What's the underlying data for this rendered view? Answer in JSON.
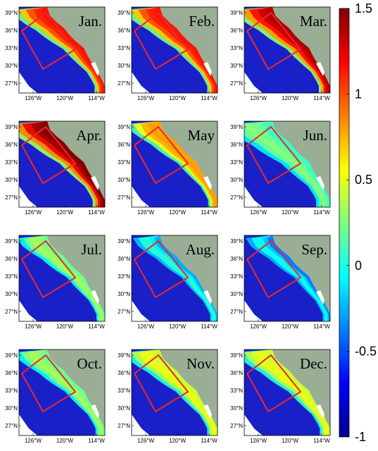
{
  "panels": [
    {
      "month": "Jan.",
      "intensity": 0.85,
      "extent": 0.55
    },
    {
      "month": "Feb.",
      "intensity": 0.85,
      "extent": 0.55
    },
    {
      "month": "Mar.",
      "intensity": 0.95,
      "extent": 0.6
    },
    {
      "month": "Apr.",
      "intensity": 1.0,
      "extent": 0.65
    },
    {
      "month": "May",
      "intensity": 0.7,
      "extent": 0.5
    },
    {
      "month": "Jun.",
      "intensity": 0.4,
      "extent": 0.75
    },
    {
      "month": "Jul.",
      "intensity": 0.45,
      "extent": 0.45
    },
    {
      "month": "Aug.",
      "intensity": 0.25,
      "extent": 0.4
    },
    {
      "month": "Sep.",
      "intensity": 0.2,
      "extent": 0.4
    },
    {
      "month": "Oct.",
      "intensity": 0.45,
      "extent": 0.5
    },
    {
      "month": "Nov.",
      "intensity": 0.55,
      "extent": 0.55
    },
    {
      "month": "Dec.",
      "intensity": 0.55,
      "extent": 0.55
    }
  ],
  "lat_ticks": [
    "39°N",
    "36°N",
    "33°N",
    "30°N",
    "27°N"
  ],
  "lon_ticks": [
    "126°W",
    "120°W",
    "114°W"
  ],
  "colorbar": {
    "min": -1,
    "max": 1.5,
    "ticks": [
      "1.5",
      "1",
      "0.5",
      "0",
      "-0.5",
      "-1"
    ],
    "colors": [
      "#00008f",
      "#0000ff",
      "#0080ff",
      "#00ffff",
      "#80ff80",
      "#ffff00",
      "#ff8000",
      "#ff0000",
      "#800000"
    ]
  },
  "colors": {
    "land": "#9aae96",
    "ocean_low": "#1a20c8",
    "box": "#e8282d"
  }
}
